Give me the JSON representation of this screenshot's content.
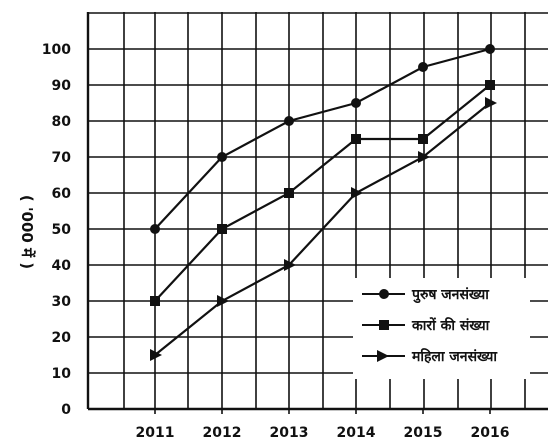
{
  "chart_data": {
    "type": "line",
    "title": "",
    "xlabel": "",
    "ylabel": "( '000 में )",
    "categories": [
      "2011",
      "2012",
      "2013",
      "2014",
      "2015",
      "2016"
    ],
    "y_ticks": [
      "0",
      "10",
      "20",
      "30",
      "40",
      "50",
      "60",
      "70",
      "80",
      "90",
      "100"
    ],
    "ylim": [
      0,
      110
    ],
    "grid": true,
    "legend_position": "bottom-right",
    "series": [
      {
        "name": "पुरुष जनसंख्या",
        "marker": "circle",
        "values": [
          50,
          70,
          80,
          85,
          95,
          100
        ]
      },
      {
        "name": "कारों की संख्या",
        "marker": "square",
        "values": [
          30,
          50,
          60,
          75,
          75,
          90
        ]
      },
      {
        "name": "महिला जनसंख्या",
        "marker": "triangle-right",
        "values": [
          15,
          30,
          40,
          60,
          70,
          85
        ]
      }
    ]
  }
}
